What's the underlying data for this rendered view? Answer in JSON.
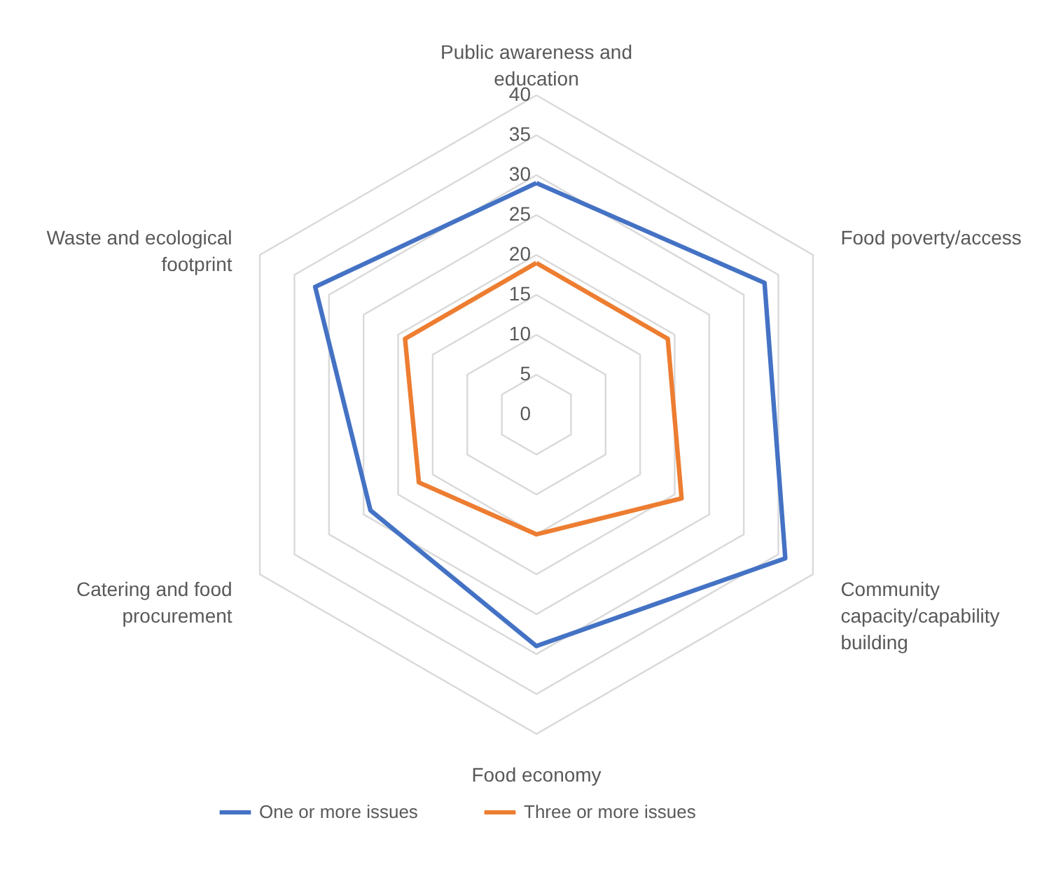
{
  "chart_data": {
    "type": "radar",
    "categories": [
      "Public awareness and education",
      "Food poverty/access",
      "Community capacity/capability building",
      "Food economy",
      "Catering and food procurement",
      "Waste and ecological footprint"
    ],
    "series": [
      {
        "name": "One or more issues",
        "color": "#4472c4",
        "values": [
          29,
          33,
          36,
          29,
          24,
          32
        ]
      },
      {
        "name": "Three or more issues",
        "color": "#ed7d31",
        "values": [
          19,
          19,
          21,
          15,
          17,
          19
        ]
      }
    ],
    "ylim": [
      0,
      40
    ],
    "yticks": [
      0,
      5,
      10,
      15,
      20,
      25,
      30,
      35,
      40
    ],
    "grid": true,
    "legend": "bottom"
  }
}
